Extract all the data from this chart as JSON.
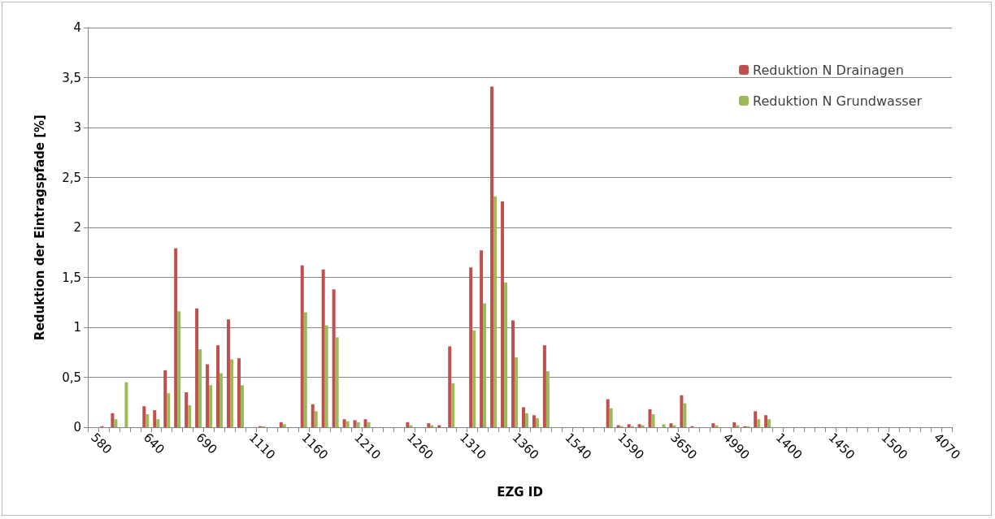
{
  "chart_data": {
    "type": "bar",
    "xlabel": "EZG ID",
    "ylabel": "Reduktion der Eintragspfade [%]",
    "categories": [
      "580",
      null,
      null,
      null,
      null,
      "640",
      null,
      null,
      null,
      null,
      "690",
      null,
      null,
      null,
      null,
      "1110",
      null,
      null,
      null,
      null,
      "1160",
      null,
      null,
      null,
      null,
      "1210",
      null,
      null,
      null,
      null,
      "1260",
      null,
      null,
      null,
      null,
      "1310",
      null,
      null,
      null,
      null,
      "1360",
      null,
      null,
      null,
      null,
      "1540",
      null,
      null,
      null,
      null,
      "1590",
      null,
      null,
      null,
      null,
      "3650",
      null,
      null,
      null,
      null,
      "4990",
      null,
      null,
      null,
      null,
      "1400",
      null,
      null,
      null,
      null,
      "1450",
      null,
      null,
      null,
      null,
      "1500",
      null,
      null,
      null,
      null,
      "4070",
      null
    ],
    "series": [
      {
        "name": "Reduktion N Drainagen",
        "color": "#c0504d",
        "values": [
          0,
          0.01,
          0.14,
          0,
          0,
          0.21,
          0.17,
          0.57,
          1.79,
          0.35,
          1.19,
          0.63,
          0.82,
          1.08,
          0.69,
          0,
          0.01,
          0,
          0.05,
          0,
          1.62,
          0.23,
          1.58,
          1.38,
          0.08,
          0.07,
          0.08,
          0,
          0,
          0,
          0.05,
          0,
          0.04,
          0.02,
          0.81,
          0,
          1.6,
          1.77,
          3.41,
          2.26,
          1.07,
          0.2,
          0.12,
          0.82,
          0,
          0,
          0,
          0,
          0,
          0.28,
          0.02,
          0.03,
          0.03,
          0.18,
          0,
          0.04,
          0.32,
          0.01,
          0,
          0.04,
          0,
          0.05,
          0.01,
          0.16,
          0.12,
          0,
          0,
          0,
          0,
          0,
          0,
          0,
          0,
          0,
          0,
          0,
          0,
          0,
          0,
          0,
          0,
          0
        ]
      },
      {
        "name": "Reduktion N Grundwasser",
        "color": "#9bbb59",
        "values": [
          0,
          0,
          0.08,
          0.45,
          0,
          0.13,
          0.08,
          0.34,
          1.16,
          0.22,
          0.78,
          0.42,
          0.54,
          0.68,
          0.42,
          0,
          0.01,
          0,
          0.03,
          0,
          1.15,
          0.16,
          1.02,
          0.9,
          0.06,
          0.05,
          0.05,
          0,
          0,
          0,
          0.02,
          0,
          0.02,
          0,
          0.44,
          0,
          0.97,
          1.24,
          2.31,
          1.45,
          0.7,
          0.14,
          0.09,
          0.56,
          0,
          0,
          0,
          0,
          0,
          0.19,
          0.01,
          0.01,
          0.02,
          0.13,
          0.03,
          0.02,
          0.24,
          0,
          0,
          0.02,
          0,
          0.02,
          0.01,
          0.08,
          0.08,
          0,
          0,
          0,
          0,
          0,
          0,
          0,
          0,
          0,
          0,
          0,
          0,
          0,
          0,
          0,
          0,
          0
        ]
      }
    ],
    "ylim": [
      0,
      4
    ],
    "yticks": [
      0,
      {
        "value": 0.5,
        "label": "0,5"
      },
      1,
      {
        "value": 1.5,
        "label": "1,5"
      },
      2,
      {
        "value": 2.5,
        "label": "2,5"
      },
      3,
      {
        "value": 3.5,
        "label": "3,5"
      },
      4
    ],
    "grid": "y",
    "legend": "top right"
  }
}
